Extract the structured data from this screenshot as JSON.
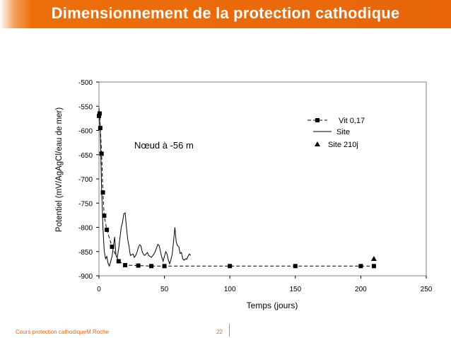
{
  "slide": {
    "title": "Dimensionnement de la protection cathodique",
    "footer_left": "Cours protection cathodiqueM.Roche",
    "page_number": "22"
  },
  "colors": {
    "title_bar": "#e8650a",
    "title_text": "#ffffff",
    "footer_text": "#e8650a",
    "series": "#000000"
  },
  "chart_data": {
    "type": "line",
    "title": "",
    "xlabel": "Temps  (jours)",
    "ylabel": "Potentiel (mV/AgAgCl/eau de mer)",
    "xlim": [
      0,
      250
    ],
    "ylim": [
      -900,
      -500
    ],
    "xticks": [
      0,
      50,
      100,
      150,
      200,
      250
    ],
    "yticks": [
      -500,
      -550,
      -600,
      -650,
      -700,
      -750,
      -800,
      -850,
      -900
    ],
    "grid": false,
    "legend_position": "right",
    "annotation": "Nœud à -56 m",
    "series": [
      {
        "name": "Vit 0,17",
        "style": "dashed-square-markers",
        "x": [
          0,
          0.5,
          1,
          2,
          3,
          4,
          6,
          10,
          15,
          20,
          30,
          40,
          50,
          100,
          150,
          200,
          210
        ],
        "y": [
          -570,
          -565,
          -595,
          -648,
          -728,
          -776,
          -805,
          -840,
          -870,
          -878,
          -879,
          -880,
          -880,
          -880,
          -880,
          -880,
          -880
        ]
      },
      {
        "name": "Site",
        "style": "solid-line",
        "x": [
          0,
          1,
          2,
          3,
          4,
          5,
          6,
          7,
          8,
          10,
          11,
          12,
          13,
          14,
          15,
          17,
          18,
          19,
          20,
          21,
          22,
          23,
          24,
          26,
          27,
          28,
          29,
          30,
          31,
          32,
          33,
          34,
          35,
          36,
          37,
          38,
          39,
          40,
          42,
          43,
          45,
          46,
          47,
          48,
          49,
          50,
          51,
          52,
          53,
          54,
          55,
          56,
          57,
          58,
          59,
          60,
          61,
          62,
          63,
          64,
          65,
          66,
          67,
          68,
          69,
          70
        ],
        "y": [
          -553,
          -605,
          -720,
          -800,
          -848,
          -865,
          -860,
          -875,
          -880,
          -860,
          -840,
          -820,
          -858,
          -862,
          -845,
          -800,
          -790,
          -772,
          -770,
          -800,
          -825,
          -840,
          -858,
          -855,
          -862,
          -858,
          -852,
          -842,
          -836,
          -838,
          -850,
          -856,
          -858,
          -855,
          -852,
          -858,
          -860,
          -862,
          -855,
          -850,
          -835,
          -838,
          -850,
          -862,
          -870,
          -860,
          -850,
          -855,
          -868,
          -875,
          -866,
          -855,
          -828,
          -800,
          -830,
          -838,
          -840,
          -854,
          -852,
          -865,
          -868,
          -865,
          -866,
          -860,
          -855,
          -858
        ]
      },
      {
        "name": "Site 210j",
        "style": "triangle-marker",
        "x": [
          210
        ],
        "y": [
          -865
        ]
      }
    ]
  }
}
